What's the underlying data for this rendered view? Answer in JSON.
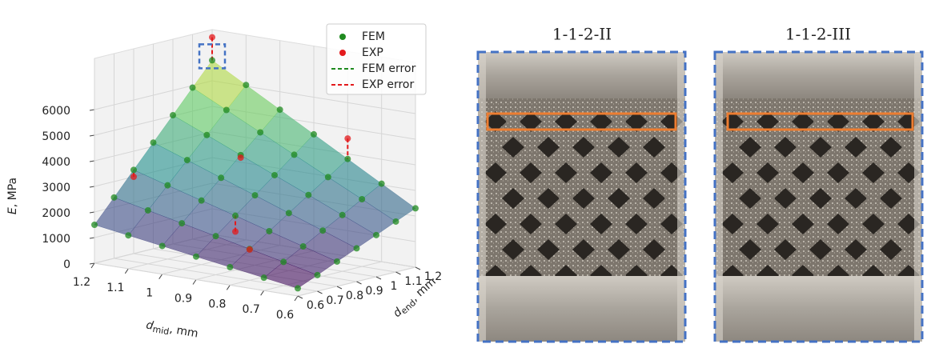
{
  "chart_data": {
    "type": "scatter3d",
    "xlabel": {
      "symbol": "d",
      "subscript": "mid",
      "unit": ", mm"
    },
    "ylabel": {
      "symbol": "d",
      "subscript": "end",
      "unit": ", mm"
    },
    "zlabel": {
      "symbol": "E",
      "unit": ", MPa"
    },
    "xlim": [
      0.6,
      1.2
    ],
    "ylim": [
      0.6,
      1.2
    ],
    "zlim": [
      0,
      8000
    ],
    "xticks": [
      0.6,
      0.7,
      0.8,
      0.9,
      1.0,
      1.1,
      1.2
    ],
    "yticks": [
      0.6,
      0.7,
      0.8,
      0.9,
      1.0,
      1.1,
      1.2
    ],
    "zticks": [
      0,
      1000,
      2000,
      3000,
      4000,
      5000,
      6000
    ],
    "grid": true,
    "legend": "upper right",
    "series": [
      {
        "name": "FEM",
        "color": "#1f8a1f",
        "x": [
          0.6,
          0.7,
          0.8,
          0.9,
          1.0,
          1.1,
          1.2,
          0.6,
          0.7,
          0.8,
          0.9,
          1.0,
          1.1,
          1.2,
          0.6,
          0.7,
          0.8,
          0.9,
          1.0,
          1.1,
          1.2,
          0.6,
          0.7,
          0.8,
          0.9,
          1.0,
          1.1,
          1.2,
          0.6,
          0.7,
          0.8,
          0.9,
          1.0,
          1.1,
          1.2,
          0.6,
          0.7,
          0.8,
          0.9,
          1.0,
          1.1,
          1.2,
          0.6,
          0.7,
          0.8,
          0.9,
          1.0,
          1.1,
          1.2
        ],
        "y": [
          0.6,
          0.6,
          0.6,
          0.6,
          0.6,
          0.6,
          0.6,
          0.7,
          0.7,
          0.7,
          0.7,
          0.7,
          0.7,
          0.7,
          0.8,
          0.8,
          0.8,
          0.8,
          0.8,
          0.8,
          0.8,
          0.9,
          0.9,
          0.9,
          0.9,
          0.9,
          0.9,
          0.9,
          1.0,
          1.0,
          1.0,
          1.0,
          1.0,
          1.0,
          1.0,
          1.1,
          1.1,
          1.1,
          1.1,
          1.1,
          1.1,
          1.1,
          1.2,
          1.2,
          1.2,
          1.2,
          1.2,
          1.2,
          1.2
        ],
        "z": [
          300,
          500,
          700,
          900,
          1100,
          1300,
          1500,
          630,
          930,
          1220,
          1510,
          1800,
          2090,
          2380,
          970,
          1350,
          1730,
          2120,
          2500,
          2880,
          3270,
          1300,
          1780,
          2250,
          2730,
          3200,
          3680,
          4150,
          1630,
          2200,
          2770,
          3330,
          3900,
          4470,
          5030,
          1970,
          2630,
          3280,
          3940,
          4600,
          5260,
          5920,
          2300,
          3050,
          3800,
          4550,
          5300,
          6050,
          6800
        ]
      },
      {
        "name": "EXP",
        "color": "#e31a1c",
        "x": [
          1.2,
          0.8,
          1.2,
          1.0,
          0.9,
          0.8
        ],
        "y": [
          1.2,
          1.2,
          0.8,
          1.0,
          0.8,
          0.7
        ],
        "z": [
          7700,
          4600,
          3000,
          3800,
          1500,
          1200
        ]
      }
    ],
    "error_series": [
      {
        "name": "FEM error",
        "color": "#1f8a1f"
      },
      {
        "name": "EXP error",
        "color": "#e31a1c"
      }
    ]
  },
  "panels": [
    {
      "title": "1-1-2-II"
    },
    {
      "title": "1-1-2-III"
    }
  ]
}
